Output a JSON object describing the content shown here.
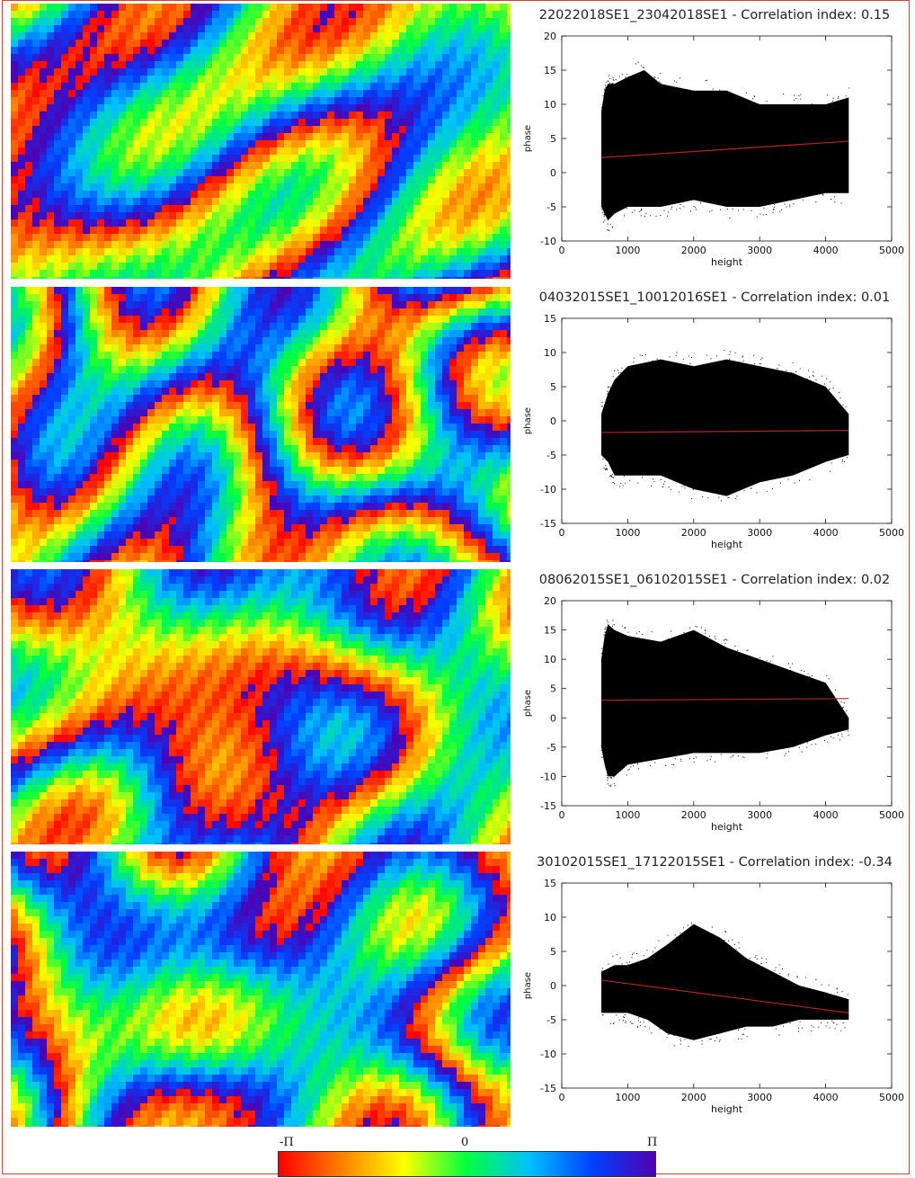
{
  "colors": {
    "frame_border": "#c9452f",
    "trend_line": "#b5261e",
    "point_cloud": "#000000",
    "colormap": [
      "#ff0000",
      "#ff8000",
      "#ffff00",
      "#00ff40",
      "#00c0ff",
      "#0040ff",
      "#5000b0"
    ]
  },
  "interferograms": [
    {
      "icon": "interferogram-image"
    },
    {
      "icon": "interferogram-image"
    },
    {
      "icon": "interferogram-image"
    },
    {
      "icon": "interferogram-image"
    }
  ],
  "colorbar": {
    "min_label": "-Π",
    "mid_label": "0",
    "max_label": "Π"
  },
  "chart_data": [
    {
      "type": "scatter",
      "title": "22022018SE1_23042018SE1 - Correlation index: 0.15",
      "xlabel": "height",
      "ylabel": "phase",
      "xlim": [
        0,
        5000
      ],
      "ylim": [
        -10,
        20
      ],
      "xticks": [
        0,
        1000,
        2000,
        3000,
        4000,
        5000
      ],
      "yticks": [
        -10,
        -5,
        0,
        5,
        10,
        15,
        20
      ],
      "correlation_index": 0.15,
      "trend_line": {
        "x": [
          600,
          4350
        ],
        "y": [
          2.2,
          4.6
        ]
      },
      "point_cloud": {
        "x": [
          600,
          650,
          700,
          800,
          1000,
          1250,
          1500,
          2000,
          2500,
          3000,
          3500,
          4000,
          4350
        ],
        "upper": [
          9,
          12,
          13,
          13,
          14,
          15,
          13,
          12,
          12,
          10,
          10,
          10,
          11
        ],
        "lower": [
          -5,
          -6,
          -7,
          -6,
          -5,
          -5,
          -5,
          -4,
          -5,
          -5,
          -4,
          -3,
          -3
        ]
      },
      "grid": false
    },
    {
      "type": "scatter",
      "title": "04032015SE1_10012016SE1 - Correlation index: 0.01",
      "xlabel": "height",
      "ylabel": "phase",
      "xlim": [
        0,
        5000
      ],
      "ylim": [
        -15,
        15
      ],
      "xticks": [
        0,
        1000,
        2000,
        3000,
        4000,
        5000
      ],
      "yticks": [
        -15,
        -10,
        -5,
        0,
        5,
        10,
        15
      ],
      "correlation_index": 0.01,
      "trend_line": {
        "x": [
          600,
          4350
        ],
        "y": [
          -1.7,
          -1.4
        ]
      },
      "point_cloud": {
        "x": [
          600,
          700,
          800,
          1000,
          1500,
          2000,
          2500,
          3000,
          3500,
          4000,
          4350
        ],
        "upper": [
          1,
          4,
          6,
          8,
          9,
          8,
          9,
          8,
          7,
          5,
          1
        ],
        "lower": [
          -5,
          -6,
          -8,
          -8,
          -8,
          -10,
          -11,
          -9,
          -8,
          -6,
          -5
        ]
      },
      "grid": false
    },
    {
      "type": "scatter",
      "title": "08062015SE1_06102015SE1 - Correlation index: 0.02",
      "xlabel": "height",
      "ylabel": "phase",
      "xlim": [
        0,
        5000
      ],
      "ylim": [
        -15,
        20
      ],
      "xticks": [
        0,
        1000,
        2000,
        3000,
        4000,
        5000
      ],
      "yticks": [
        -15,
        -10,
        -5,
        0,
        5,
        10,
        15,
        20
      ],
      "correlation_index": 0.02,
      "trend_line": {
        "x": [
          600,
          4350
        ],
        "y": [
          3.0,
          3.3
        ]
      },
      "point_cloud": {
        "x": [
          600,
          650,
          700,
          800,
          1000,
          1500,
          2000,
          2500,
          3000,
          3500,
          4000,
          4350
        ],
        "upper": [
          10,
          14,
          16,
          15,
          14,
          13,
          15,
          12,
          10,
          8,
          6,
          0
        ],
        "lower": [
          -5,
          -8,
          -10,
          -10,
          -8,
          -7,
          -6,
          -6,
          -6,
          -5,
          -3,
          -2
        ]
      },
      "grid": false
    },
    {
      "type": "scatter",
      "title": "30102015SE1_17122015SE1 - Correlation index: -0.34",
      "xlabel": "height",
      "ylabel": "phase",
      "xlim": [
        0,
        5000
      ],
      "ylim": [
        -15,
        15
      ],
      "xticks": [
        0,
        1000,
        2000,
        3000,
        4000,
        5000
      ],
      "yticks": [
        -15,
        -10,
        -5,
        0,
        5,
        10,
        15
      ],
      "correlation_index": -0.34,
      "trend_line": {
        "x": [
          600,
          4350
        ],
        "y": [
          0.8,
          -4.0
        ]
      },
      "point_cloud": {
        "x": [
          600,
          800,
          1000,
          1300,
          1600,
          2000,
          2400,
          2800,
          3200,
          3600,
          4000,
          4350
        ],
        "upper": [
          2,
          3,
          3,
          4,
          6,
          9,
          7,
          4,
          2,
          0,
          -1,
          -2
        ],
        "lower": [
          -4,
          -4,
          -4,
          -5,
          -7,
          -8,
          -7,
          -6,
          -6,
          -5,
          -5,
          -5
        ]
      },
      "grid": false
    }
  ]
}
